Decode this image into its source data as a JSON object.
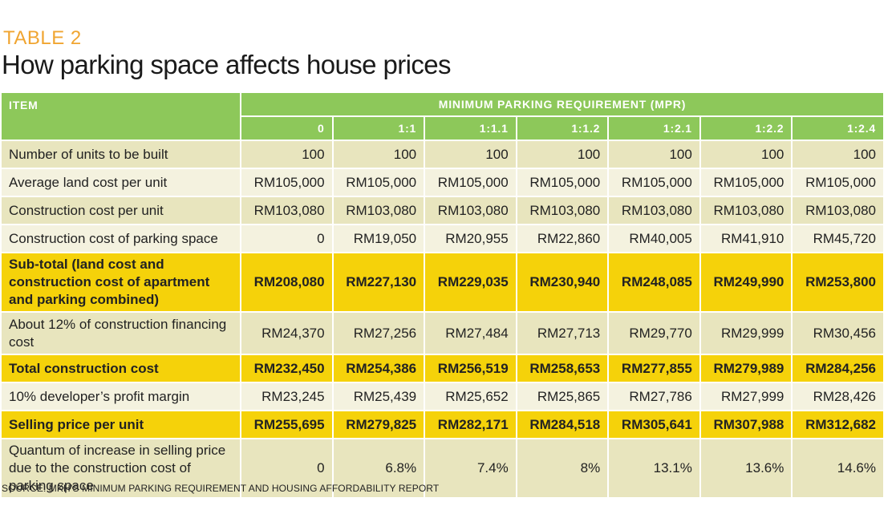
{
  "kicker": "TABLE 2",
  "title": "How parking space affects house prices",
  "table": {
    "item_header": "ITEM",
    "group_header": "MINIMUM PARKING REQUIREMENT (MPR)",
    "columns": [
      "0",
      "1:1",
      "1:1.1",
      "1:1.2",
      "1:2.1",
      "1:2.2",
      "1:2.4"
    ],
    "rows": [
      {
        "label": "Number of units to be built",
        "values": [
          "100",
          "100",
          "100",
          "100",
          "100",
          "100",
          "100"
        ]
      },
      {
        "label": "Average land cost per unit",
        "values": [
          "RM105,000",
          "RM105,000",
          "RM105,000",
          "RM105,000",
          "RM105,000",
          "RM105,000",
          "RM105,000"
        ]
      },
      {
        "label": "Construction cost per unit",
        "values": [
          "RM103,080",
          "RM103,080",
          "RM103,080",
          "RM103,080",
          "RM103,080",
          "RM103,080",
          "RM103,080"
        ]
      },
      {
        "label": "Construction cost of parking space",
        "values": [
          "0",
          "RM19,050",
          "RM20,955",
          "RM22,860",
          "RM40,005",
          "RM41,910",
          "RM45,720"
        ]
      },
      {
        "label": "Sub-total (land cost and construction cost of apartment and parking combined)",
        "values": [
          "RM208,080",
          "RM227,130",
          "RM229,035",
          "RM230,940",
          "RM248,085",
          "RM249,990",
          "RM253,800"
        ]
      },
      {
        "label": "About 12% of construction financing cost",
        "values": [
          "RM24,370",
          "RM27,256",
          "RM27,484",
          "RM27,713",
          "RM29,770",
          "RM29,999",
          "RM30,456"
        ]
      },
      {
        "label": "Total construction cost",
        "values": [
          "RM232,450",
          "RM254,386",
          "RM256,519",
          "RM258,653",
          "RM277,855",
          "RM279,989",
          "RM284,256"
        ]
      },
      {
        "label": "10% developer’s profit margin",
        "values": [
          "RM23,245",
          "RM25,439",
          "RM25,652",
          "RM25,865",
          "RM27,786",
          "RM27,999",
          "RM28,426"
        ]
      },
      {
        "label": "Selling price per unit",
        "values": [
          "RM255,695",
          "RM279,825",
          "RM282,171",
          "RM284,518",
          "RM305,641",
          "RM307,988",
          "RM312,682"
        ]
      },
      {
        "label": "Quantum of increase in selling price due to the construction cost of parking space",
        "values": [
          "0",
          "6.8%",
          "7.4%",
          "8%",
          "13.1%",
          "13.6%",
          "14.6%"
        ]
      }
    ]
  },
  "source": "SOURCE: MKH’S MINIMUM PARKING REQUIREMENT AND HOUSING AFFORDABILITY REPORT",
  "colors": {
    "header_green": "#8dc85a",
    "highlight_yellow": "#f5d20a",
    "row_tan": "#e8e5be",
    "row_light": "#f4f2df",
    "kicker_orange": "#f0a531"
  }
}
